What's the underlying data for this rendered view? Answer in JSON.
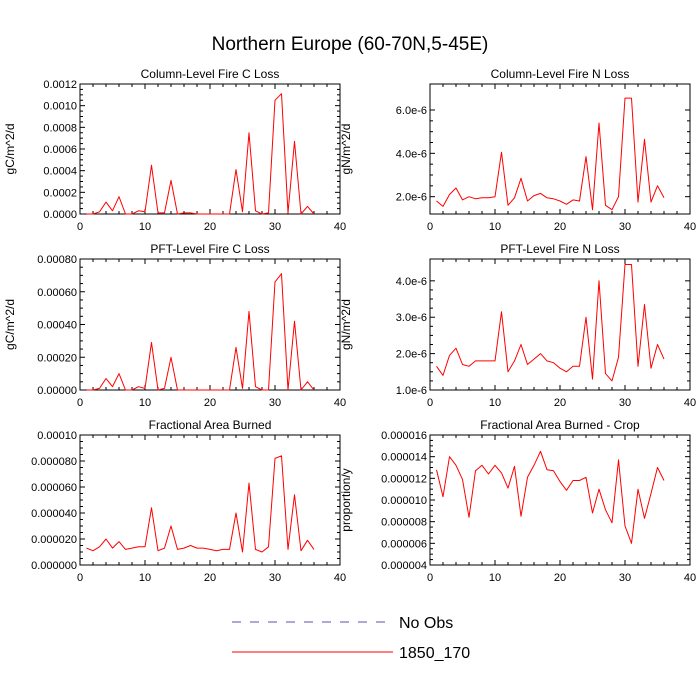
{
  "title": "Northern Europe (60-70N,5-45E)",
  "colors": {
    "series": "#ff0000",
    "obs": "#5555aa",
    "axis": "#000000"
  },
  "legend": {
    "entries": [
      {
        "label": "No Obs",
        "style": "dashed",
        "color": "#5555aa"
      },
      {
        "label": "1850_170",
        "style": "solid",
        "color": "#ff0000"
      }
    ]
  },
  "chart_data": [
    {
      "type": "line",
      "title": "Column-Level Fire C Loss",
      "ylabel": "gC/m^2/d",
      "xlim": [
        0,
        40
      ],
      "ylim": [
        0,
        0.0012
      ],
      "xticks": [
        "0",
        "10",
        "20",
        "30",
        "40"
      ],
      "yticks": [
        "0.0000",
        "0.0002",
        "0.0004",
        "0.0006",
        "0.0008",
        "0.0010",
        "0.0012"
      ],
      "ytick_values": [
        0,
        0.0002,
        0.0004,
        0.0006,
        0.0008,
        0.001,
        0.0012
      ],
      "series": [
        {
          "name": "1850_170",
          "x": [
            1,
            2,
            3,
            4,
            5,
            6,
            7,
            8,
            9,
            10,
            11,
            12,
            13,
            14,
            15,
            16,
            17,
            18,
            19,
            20,
            21,
            22,
            23,
            24,
            25,
            26,
            27,
            28,
            29,
            30,
            31,
            32,
            33,
            34,
            35,
            36
          ],
          "y": [
            0.0,
            0.0,
            2e-05,
            0.00011,
            3e-05,
            0.00016,
            0.0,
            0.0,
            3e-05,
            2e-05,
            0.00045,
            1e-05,
            1e-05,
            0.00031,
            0.0,
            1e-05,
            1e-05,
            0.0,
            0.0,
            0.0,
            0.0,
            0.0,
            0.0,
            0.00041,
            2e-05,
            0.00075,
            3e-05,
            0.0,
            1e-05,
            0.00105,
            0.00111,
            1e-05,
            0.00067,
            0.0,
            7e-05,
            0.0
          ]
        }
      ]
    },
    {
      "type": "line",
      "title": "Column-Level Fire N Loss",
      "ylabel": "gN/m^2/d",
      "xlim": [
        0,
        40
      ],
      "ylim": [
        1.2e-06,
        7.2e-06
      ],
      "xticks": [
        "0",
        "10",
        "20",
        "30",
        "40"
      ],
      "yticks": [
        "2.0e-6",
        "4.0e-6",
        "6.0e-6"
      ],
      "ytick_values": [
        2e-06,
        4e-06,
        6e-06
      ],
      "series": [
        {
          "name": "1850_170",
          "x": [
            1,
            2,
            3,
            4,
            5,
            6,
            7,
            8,
            9,
            10,
            11,
            12,
            13,
            14,
            15,
            16,
            17,
            18,
            19,
            20,
            21,
            22,
            23,
            24,
            25,
            26,
            27,
            28,
            29,
            30,
            31,
            32,
            33,
            34,
            35,
            36
          ],
          "y": [
            1.8e-06,
            1.55e-06,
            2.1e-06,
            2.4e-06,
            1.85e-06,
            2e-06,
            1.9e-06,
            1.95e-06,
            1.95e-06,
            2e-06,
            4.05e-06,
            1.6e-06,
            1.95e-06,
            2.85e-06,
            1.8e-06,
            2.05e-06,
            2.15e-06,
            1.95e-06,
            1.9e-06,
            1.8e-06,
            1.65e-06,
            1.85e-06,
            1.8e-06,
            3.85e-06,
            1.4e-06,
            5.4e-06,
            1.6e-06,
            1.4e-06,
            2e-06,
            6.55e-06,
            6.55e-06,
            1.75e-06,
            4.65e-06,
            1.75e-06,
            2.5e-06,
            1.95e-06
          ]
        }
      ]
    },
    {
      "type": "line",
      "title": "PFT-Level Fire C Loss",
      "ylabel": "gC/m^2/d",
      "xlim": [
        0,
        40
      ],
      "ylim": [
        0,
        0.0008
      ],
      "xticks": [
        "0",
        "10",
        "20",
        "30",
        "40"
      ],
      "yticks": [
        "0.00000",
        "0.00020",
        "0.00040",
        "0.00060",
        "0.00080"
      ],
      "ytick_values": [
        0,
        0.0002,
        0.0004,
        0.0006,
        0.0008
      ],
      "series": [
        {
          "name": "1850_170",
          "x": [
            1,
            2,
            3,
            4,
            5,
            6,
            7,
            8,
            9,
            10,
            11,
            12,
            13,
            14,
            15,
            16,
            17,
            18,
            19,
            20,
            21,
            22,
            23,
            24,
            25,
            26,
            27,
            28,
            29,
            30,
            31,
            32,
            33,
            34,
            35,
            36
          ],
          "y": [
            0.0,
            0.0,
            1e-05,
            7e-05,
            2e-05,
            0.0001,
            0.0,
            0.0,
            2e-05,
            1e-05,
            0.00029,
            0.0,
            1e-05,
            0.0002,
            0.0,
            0.0,
            0.0,
            0.0,
            0.0,
            0.0,
            0.0,
            0.0,
            0.0,
            0.00026,
            1e-05,
            0.00048,
            2e-05,
            0.0,
            0.0,
            0.00066,
            0.00071,
            0.0,
            0.00042,
            0.0,
            5e-05,
            0.0
          ]
        }
      ]
    },
    {
      "type": "line",
      "title": "PFT-Level Fire N Loss",
      "ylabel": "gN/m^2/d",
      "xlim": [
        0,
        40
      ],
      "ylim": [
        1e-06,
        4.6e-06
      ],
      "xticks": [
        "0",
        "10",
        "20",
        "30",
        "40"
      ],
      "yticks": [
        "1.0e-6",
        "2.0e-6",
        "3.0e-6",
        "4.0e-6"
      ],
      "ytick_values": [
        1e-06,
        2e-06,
        3e-06,
        4e-06
      ],
      "series": [
        {
          "name": "1850_170",
          "x": [
            1,
            2,
            3,
            4,
            5,
            6,
            7,
            8,
            9,
            10,
            11,
            12,
            13,
            14,
            15,
            16,
            17,
            18,
            19,
            20,
            21,
            22,
            23,
            24,
            25,
            26,
            27,
            28,
            29,
            30,
            31,
            32,
            33,
            34,
            35,
            36
          ],
          "y": [
            1.65e-06,
            1.4e-06,
            1.95e-06,
            2.15e-06,
            1.7e-06,
            1.65e-06,
            1.8e-06,
            1.8e-06,
            1.8e-06,
            1.8e-06,
            3.15e-06,
            1.5e-06,
            1.8e-06,
            2.25e-06,
            1.7e-06,
            1.85e-06,
            2e-06,
            1.8e-06,
            1.75e-06,
            1.6e-06,
            1.5e-06,
            1.65e-06,
            1.65e-06,
            3e-06,
            1.3e-06,
            4e-06,
            1.45e-06,
            1.25e-06,
            1.9e-06,
            4.45e-06,
            4.45e-06,
            1.65e-06,
            3.35e-06,
            1.6e-06,
            2.25e-06,
            1.85e-06
          ]
        }
      ]
    },
    {
      "type": "line",
      "title": "Fractional Area Burned",
      "ylabel": "",
      "xlim": [
        0,
        40
      ],
      "ylim": [
        0,
        0.0001
      ],
      "xticks": [
        "0",
        "10",
        "20",
        "30",
        "40"
      ],
      "yticks": [
        "0.000000",
        "0.000020",
        "0.000040",
        "0.000060",
        "0.000080",
        "0.00010"
      ],
      "ytick_values": [
        0,
        2e-05,
        4e-05,
        6e-05,
        8e-05,
        0.0001
      ],
      "series": [
        {
          "name": "1850_170",
          "x": [
            1,
            2,
            3,
            4,
            5,
            6,
            7,
            8,
            9,
            10,
            11,
            12,
            13,
            14,
            15,
            16,
            17,
            18,
            19,
            20,
            21,
            22,
            23,
            24,
            25,
            26,
            27,
            28,
            29,
            30,
            31,
            32,
            33,
            34,
            35,
            36
          ],
          "y": [
            1.3e-05,
            1.1e-05,
            1.4e-05,
            2e-05,
            1.3e-05,
            1.8e-05,
            1.2e-05,
            1.3e-05,
            1.4e-05,
            1.4e-05,
            4.4e-05,
            1.1e-05,
            1.3e-05,
            3e-05,
            1.2e-05,
            1.3e-05,
            1.5e-05,
            1.3e-05,
            1.3e-05,
            1.2e-05,
            1.1e-05,
            1.2e-05,
            1.2e-05,
            4e-05,
            1e-05,
            6.3e-05,
            1.2e-05,
            1e-05,
            1.4e-05,
            8.2e-05,
            8.4e-05,
            1.2e-05,
            5.4e-05,
            1.1e-05,
            1.9e-05,
            1.2e-05
          ]
        }
      ]
    },
    {
      "type": "line",
      "title": "Fractional Area Burned - Crop",
      "ylabel": "proportion/y",
      "xlim": [
        0,
        40
      ],
      "ylim": [
        4e-06,
        1.6e-05
      ],
      "xticks": [
        "0",
        "10",
        "20",
        "30",
        "40"
      ],
      "yticks": [
        "0.000004",
        "0.000006",
        "0.000008",
        "0.000010",
        "0.000012",
        "0.000014",
        "0.000016"
      ],
      "ytick_values": [
        4e-06,
        6e-06,
        8e-06,
        1e-05,
        1.2e-05,
        1.4e-05,
        1.6e-05
      ],
      "series": [
        {
          "name": "1850_170",
          "x": [
            1,
            2,
            3,
            4,
            5,
            6,
            7,
            8,
            9,
            10,
            11,
            12,
            13,
            14,
            15,
            16,
            17,
            18,
            19,
            20,
            21,
            22,
            23,
            24,
            25,
            26,
            27,
            28,
            29,
            30,
            31,
            32,
            33,
            34,
            35,
            36
          ],
          "y": [
            1.28e-05,
            1.03e-05,
            1.4e-05,
            1.32e-05,
            1.19e-05,
            8.4e-06,
            1.27e-05,
            1.32e-05,
            1.24e-05,
            1.32e-05,
            1.25e-05,
            1.11e-05,
            1.31e-05,
            8.5e-06,
            1.21e-05,
            1.32e-05,
            1.45e-05,
            1.28e-05,
            1.27e-05,
            1.17e-05,
            1.09e-05,
            1.18e-05,
            1.18e-05,
            1.21e-05,
            8.8e-06,
            1.1e-05,
            9.1e-06,
            7.9e-06,
            1.37e-05,
            7.6e-06,
            6e-06,
            1.1e-05,
            8.3e-06,
            1.06e-05,
            1.3e-05,
            1.18e-05
          ]
        }
      ]
    }
  ]
}
